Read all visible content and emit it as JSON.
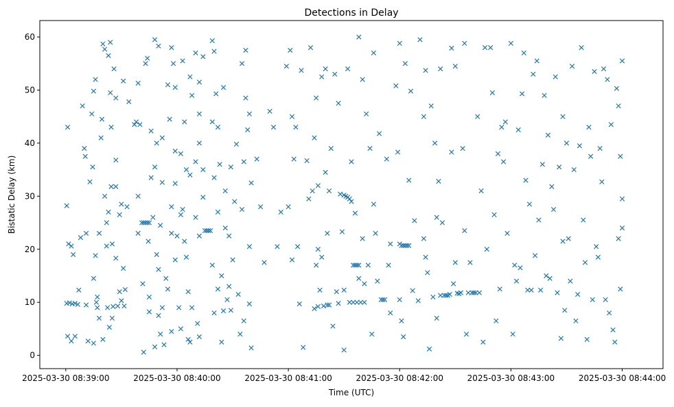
{
  "chart_data": {
    "type": "scatter",
    "title": "Detections in Delay",
    "xlabel": "Time (UTC)",
    "ylabel": "Bistatic Delay (km)",
    "x_unit": "seconds since 2025-03-30 08:39:00",
    "xlim": [
      -14,
      322
    ],
    "ylim": [
      -2.5,
      63.1
    ],
    "x_ticks": [
      {
        "value": 0,
        "label": "2025-03-30 08:39:00"
      },
      {
        "value": 60,
        "label": "2025-03-30 08:40:00"
      },
      {
        "value": 120,
        "label": "2025-03-30 08:41:00"
      },
      {
        "value": 180,
        "label": "2025-03-30 08:42:00"
      },
      {
        "value": 240,
        "label": "2025-03-30 08:43:00"
      },
      {
        "value": 300,
        "label": "2025-03-30 08:44:00"
      }
    ],
    "y_ticks": [
      {
        "value": 0,
        "label": "0"
      },
      {
        "value": 10,
        "label": "10"
      },
      {
        "value": 20,
        "label": "20"
      },
      {
        "value": 30,
        "label": "30"
      },
      {
        "value": 40,
        "label": "40"
      },
      {
        "value": 50,
        "label": "50"
      },
      {
        "value": 60,
        "label": "60"
      }
    ],
    "grid": false,
    "marker": "x",
    "color": "#1f77b4",
    "points": [
      [
        0.5,
        28.2
      ],
      [
        1,
        43
      ],
      [
        1.5,
        21
      ],
      [
        3,
        20.6
      ],
      [
        4,
        19
      ],
      [
        0.5,
        9.8
      ],
      [
        2,
        9.9
      ],
      [
        3.5,
        9.7
      ],
      [
        5,
        9.8
      ],
      [
        6.5,
        9.6
      ],
      [
        1,
        3.6
      ],
      [
        3,
        2.7
      ],
      [
        5,
        3.6
      ],
      [
        7,
        12.3
      ],
      [
        8,
        22.2
      ],
      [
        9,
        47
      ],
      [
        10.5,
        37.5
      ],
      [
        10,
        39
      ],
      [
        11,
        23
      ],
      [
        11,
        9.5
      ],
      [
        12,
        2.7
      ],
      [
        13,
        32.7
      ],
      [
        14,
        45.5
      ],
      [
        14.5,
        35.5
      ],
      [
        15,
        49.8
      ],
      [
        15,
        14.5
      ],
      [
        15,
        2.3
      ],
      [
        16,
        52
      ],
      [
        16,
        18.8
      ],
      [
        16.5,
        10
      ],
      [
        17,
        11
      ],
      [
        17,
        9
      ],
      [
        18,
        7
      ],
      [
        18,
        23
      ],
      [
        19,
        41
      ],
      [
        19.5,
        44.5
      ],
      [
        20,
        58.7
      ],
      [
        20,
        3
      ],
      [
        21,
        57.7
      ],
      [
        21,
        30
      ],
      [
        22,
        25
      ],
      [
        22,
        20.6
      ],
      [
        22.5,
        9
      ],
      [
        23,
        56.5
      ],
      [
        23,
        27
      ],
      [
        23.5,
        5.3
      ],
      [
        24,
        59
      ],
      [
        24,
        49.5
      ],
      [
        24.5,
        43
      ],
      [
        24.5,
        31.8
      ],
      [
        25,
        21
      ],
      [
        25,
        7
      ],
      [
        25.5,
        9.2
      ],
      [
        26,
        54
      ],
      [
        27,
        48.5
      ],
      [
        27,
        36.8
      ],
      [
        27,
        31.8
      ],
      [
        27,
        18.3
      ],
      [
        28,
        9.3
      ],
      [
        29,
        26.5
      ],
      [
        29,
        12
      ],
      [
        30,
        28.5
      ],
      [
        30,
        10.3
      ],
      [
        31,
        51.7
      ],
      [
        31,
        16.4
      ],
      [
        31.5,
        9.3
      ],
      [
        32,
        12.4
      ],
      [
        33,
        28
      ],
      [
        34,
        47.8
      ],
      [
        37,
        43.5
      ],
      [
        38,
        44
      ],
      [
        39,
        51.3
      ],
      [
        39,
        30
      ],
      [
        39,
        23
      ],
      [
        40,
        43.5
      ],
      [
        41,
        25
      ],
      [
        42,
        25
      ],
      [
        43,
        25
      ],
      [
        44,
        25
      ],
      [
        45,
        25
      ],
      [
        41.5,
        13.5
      ],
      [
        42,
        0.6
      ],
      [
        43,
        55
      ],
      [
        44,
        56
      ],
      [
        44.5,
        21.5
      ],
      [
        45,
        11
      ],
      [
        45,
        8.2
      ],
      [
        46,
        33.5
      ],
      [
        46,
        42.3
      ],
      [
        47,
        26
      ],
      [
        48,
        59.5
      ],
      [
        48,
        35.5
      ],
      [
        48,
        1.6
      ],
      [
        49,
        40
      ],
      [
        49,
        19
      ],
      [
        50,
        58.3
      ],
      [
        50,
        16.2
      ],
      [
        50,
        7.5
      ],
      [
        51,
        24.5
      ],
      [
        51,
        4
      ],
      [
        52,
        41
      ],
      [
        52,
        32.6
      ],
      [
        52,
        9
      ],
      [
        53,
        2
      ],
      [
        54,
        14.5
      ],
      [
        55,
        51
      ],
      [
        55,
        12.5
      ],
      [
        56,
        44.5
      ],
      [
        57,
        58
      ],
      [
        57,
        28
      ],
      [
        57,
        23
      ],
      [
        57,
        4.5
      ],
      [
        58,
        55
      ],
      [
        59,
        50.5
      ],
      [
        59,
        38.5
      ],
      [
        59,
        32.4
      ],
      [
        59,
        18
      ],
      [
        60,
        22.5
      ],
      [
        61,
        9
      ],
      [
        62,
        38
      ],
      [
        62,
        26.5
      ],
      [
        62,
        5
      ],
      [
        63,
        55.5
      ],
      [
        63,
        27.5
      ],
      [
        64,
        44
      ],
      [
        64,
        21.5
      ],
      [
        65,
        35
      ],
      [
        65,
        18.5
      ],
      [
        66,
        3
      ],
      [
        66,
        12
      ],
      [
        67,
        52.5
      ],
      [
        67,
        34
      ],
      [
        67,
        2.5
      ],
      [
        68,
        49
      ],
      [
        68,
        9
      ],
      [
        70,
        57
      ],
      [
        70,
        36.5
      ],
      [
        70,
        26
      ],
      [
        71,
        6
      ],
      [
        72,
        51.5
      ],
      [
        72,
        45.5
      ],
      [
        72,
        40
      ],
      [
        72,
        22.5
      ],
      [
        72,
        3.5
      ],
      [
        74,
        56.3
      ],
      [
        74,
        35
      ],
      [
        74,
        29.8
      ],
      [
        75,
        23.5
      ],
      [
        76,
        23.5
      ],
      [
        77,
        23.5
      ],
      [
        78,
        23.5
      ],
      [
        79,
        59.3
      ],
      [
        79,
        44
      ],
      [
        79,
        17
      ],
      [
        80,
        57.3
      ],
      [
        80,
        33.5
      ],
      [
        80,
        8
      ],
      [
        81,
        49.3
      ],
      [
        82,
        43
      ],
      [
        82,
        27
      ],
      [
        82,
        12.5
      ],
      [
        83,
        36
      ],
      [
        84,
        15
      ],
      [
        84,
        2.5
      ],
      [
        85,
        50.5
      ],
      [
        85,
        8.4
      ],
      [
        86,
        31
      ],
      [
        86,
        24
      ],
      [
        87,
        10.5
      ],
      [
        88,
        22.5
      ],
      [
        88,
        13
      ],
      [
        89,
        35.5
      ],
      [
        89,
        8.5
      ],
      [
        90,
        18
      ],
      [
        91,
        29
      ],
      [
        92,
        39.8
      ],
      [
        93,
        11.5
      ],
      [
        94,
        4
      ],
      [
        95,
        55
      ],
      [
        95,
        27.5
      ],
      [
        96,
        36.5
      ],
      [
        96,
        6.5
      ],
      [
        97,
        57.5
      ],
      [
        97,
        48.5
      ],
      [
        98,
        42.5
      ],
      [
        99,
        45.5
      ],
      [
        99,
        20.5
      ],
      [
        99,
        9.7
      ],
      [
        100,
        32.5
      ],
      [
        100,
        1.4
      ],
      [
        103,
        37
      ],
      [
        105,
        28
      ],
      [
        107,
        17.5
      ],
      [
        110,
        46
      ],
      [
        112,
        43
      ],
      [
        114,
        20.5
      ],
      [
        116,
        27
      ],
      [
        119,
        54.5
      ],
      [
        120,
        28
      ],
      [
        121,
        57.5
      ],
      [
        122,
        45
      ],
      [
        122,
        18
      ],
      [
        123,
        37
      ],
      [
        124,
        43
      ],
      [
        125,
        20.5
      ],
      [
        126,
        9.7
      ],
      [
        127,
        53.7
      ],
      [
        128,
        1.5
      ],
      [
        130,
        36.7
      ],
      [
        131,
        29.5
      ],
      [
        132,
        58
      ],
      [
        133,
        31
      ],
      [
        134,
        41
      ],
      [
        134,
        8.8
      ],
      [
        135,
        48.5
      ],
      [
        135,
        17
      ],
      [
        136,
        32
      ],
      [
        136,
        20
      ],
      [
        136,
        9.2
      ],
      [
        137,
        12.3
      ],
      [
        138,
        52.5
      ],
      [
        138,
        18.5
      ],
      [
        139,
        9.3
      ],
      [
        140,
        54
      ],
      [
        140,
        34.5
      ],
      [
        141,
        23
      ],
      [
        141,
        9.5
      ],
      [
        142,
        31
      ],
      [
        142,
        9.5
      ],
      [
        143,
        39
      ],
      [
        144,
        5.5
      ],
      [
        145,
        53
      ],
      [
        146,
        12
      ],
      [
        147,
        47.5
      ],
      [
        147,
        9.8
      ],
      [
        148,
        30.4
      ],
      [
        149,
        23.3
      ],
      [
        150,
        30.2
      ],
      [
        151,
        30
      ],
      [
        152,
        29.8
      ],
      [
        153,
        29.5
      ],
      [
        154,
        29
      ],
      [
        155,
        17
      ],
      [
        156,
        17
      ],
      [
        157,
        17
      ],
      [
        158,
        17
      ],
      [
        153,
        10
      ],
      [
        155,
        10
      ],
      [
        157,
        10
      ],
      [
        159,
        10
      ],
      [
        161,
        10
      ],
      [
        150,
        12.3
      ],
      [
        150,
        1
      ],
      [
        152,
        54
      ],
      [
        154,
        36.5
      ],
      [
        156,
        26.8
      ],
      [
        158,
        60
      ],
      [
        158,
        14.5
      ],
      [
        160,
        52
      ],
      [
        160,
        22
      ],
      [
        161,
        13.5
      ],
      [
        162,
        45.5
      ],
      [
        163,
        17
      ],
      [
        164,
        39
      ],
      [
        165,
        4
      ],
      [
        166,
        57
      ],
      [
        166,
        28.5
      ],
      [
        167,
        23
      ],
      [
        168,
        14
      ],
      [
        169,
        41.8
      ],
      [
        170,
        10.5
      ],
      [
        171,
        10.5
      ],
      [
        172,
        10.5
      ],
      [
        173,
        37
      ],
      [
        174,
        17
      ],
      [
        175,
        21
      ],
      [
        175,
        8
      ],
      [
        178,
        50.8
      ],
      [
        179,
        38.3
      ],
      [
        180,
        58.8
      ],
      [
        180,
        21
      ],
      [
        181,
        20.7
      ],
      [
        182,
        20.7
      ],
      [
        183,
        20.7
      ],
      [
        184,
        20.7
      ],
      [
        185,
        20.7
      ],
      [
        180,
        10.5
      ],
      [
        181,
        6.5
      ],
      [
        182,
        3.5
      ],
      [
        183,
        55
      ],
      [
        185,
        33
      ],
      [
        186,
        49.8
      ],
      [
        187,
        12.2
      ],
      [
        188,
        25.4
      ],
      [
        190,
        10.3
      ],
      [
        191,
        59.5
      ],
      [
        193,
        45
      ],
      [
        193,
        22
      ],
      [
        194,
        18.5
      ],
      [
        194,
        53.7
      ],
      [
        195,
        15.6
      ],
      [
        196,
        1.2
      ],
      [
        197,
        47
      ],
      [
        198,
        11
      ],
      [
        199,
        40
      ],
      [
        200,
        26
      ],
      [
        200,
        7
      ],
      [
        201,
        32.8
      ],
      [
        202,
        54
      ],
      [
        202,
        11.3
      ],
      [
        203,
        25
      ],
      [
        204,
        11.3
      ],
      [
        205,
        11.3
      ],
      [
        206,
        11.3
      ],
      [
        207,
        11.5
      ],
      [
        208,
        38.3
      ],
      [
        208,
        57.9
      ],
      [
        209,
        13.5
      ],
      [
        210,
        54.5
      ],
      [
        210,
        17.5
      ],
      [
        211,
        11.7
      ],
      [
        212,
        11.6
      ],
      [
        213,
        11.8
      ],
      [
        214,
        39
      ],
      [
        215,
        58.8
      ],
      [
        215,
        23.5
      ],
      [
        216,
        4
      ],
      [
        217,
        11.8
      ],
      [
        218,
        17.5
      ],
      [
        219,
        11.8
      ],
      [
        220,
        11.8
      ],
      [
        221,
        11.8
      ],
      [
        222,
        45
      ],
      [
        223,
        11.8
      ],
      [
        224,
        31
      ],
      [
        225,
        2.5
      ],
      [
        226,
        58
      ],
      [
        227,
        20
      ],
      [
        229,
        58
      ],
      [
        230,
        49.5
      ],
      [
        231,
        26.5
      ],
      [
        232,
        6.5
      ],
      [
        233,
        38
      ],
      [
        234,
        12.5
      ],
      [
        235,
        43
      ],
      [
        236,
        36.5
      ],
      [
        237,
        44
      ],
      [
        238,
        23
      ],
      [
        240,
        58.8
      ],
      [
        241,
        4
      ],
      [
        242,
        17
      ],
      [
        243,
        14
      ],
      [
        244,
        42.5
      ],
      [
        245,
        16.5
      ],
      [
        246,
        49.3
      ],
      [
        247,
        57
      ],
      [
        248,
        33
      ],
      [
        249,
        12.3
      ],
      [
        250,
        28.5
      ],
      [
        251,
        12.3
      ],
      [
        252,
        53
      ],
      [
        253,
        18.8
      ],
      [
        254,
        55.5
      ],
      [
        255,
        25.5
      ],
      [
        256,
        12.3
      ],
      [
        257,
        36
      ],
      [
        258,
        49
      ],
      [
        259,
        15
      ],
      [
        260,
        41.5
      ],
      [
        261,
        14.5
      ],
      [
        262,
        31.8
      ],
      [
        263,
        27.5
      ],
      [
        264,
        52.5
      ],
      [
        265,
        11.8
      ],
      [
        266,
        35.5
      ],
      [
        267,
        3.2
      ],
      [
        268,
        45
      ],
      [
        268,
        21.5
      ],
      [
        269,
        8.5
      ],
      [
        270,
        40
      ],
      [
        271,
        22
      ],
      [
        272,
        14
      ],
      [
        273,
        54.5
      ],
      [
        274,
        35
      ],
      [
        275,
        6.5
      ],
      [
        276,
        11.5
      ],
      [
        277,
        39.5
      ],
      [
        278,
        58
      ],
      [
        279,
        25.5
      ],
      [
        280,
        17.5
      ],
      [
        281,
        3
      ],
      [
        282,
        43
      ],
      [
        283,
        37.5
      ],
      [
        284,
        10.5
      ],
      [
        285,
        53.5
      ],
      [
        286,
        20.5
      ],
      [
        287,
        18.5
      ],
      [
        288,
        39
      ],
      [
        289,
        32.7
      ],
      [
        290,
        54
      ],
      [
        291,
        10.5
      ],
      [
        292,
        52
      ],
      [
        293,
        8
      ],
      [
        294,
        43.5
      ],
      [
        295,
        4.8
      ],
      [
        296,
        2.5
      ],
      [
        297,
        50.3
      ],
      [
        298,
        22
      ],
      [
        298,
        47
      ],
      [
        299,
        12.5
      ],
      [
        299,
        37.5
      ],
      [
        300,
        29.5
      ],
      [
        300,
        55.5
      ],
      [
        300,
        24
      ]
    ]
  }
}
